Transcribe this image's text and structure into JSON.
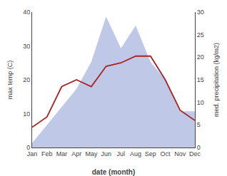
{
  "chart_data": {
    "type": "line",
    "xlabel": "date (month)",
    "ylabel": "max temp (C)",
    "y2label": "med. precipitation (kg/m2)",
    "categories": [
      "Jan",
      "Feb",
      "Mar",
      "Apr",
      "May",
      "Jun",
      "Jul",
      "Aug",
      "Sep",
      "Oct",
      "Nov",
      "Dec"
    ],
    "series": [
      {
        "type": "area",
        "axis": "y2",
        "color": "#c0c8e8",
        "values": [
          1,
          5,
          9,
          13,
          19,
          29,
          22,
          27,
          19,
          15,
          8,
          8
        ]
      },
      {
        "type": "line",
        "color": "#aa2222",
        "values": [
          6,
          9,
          18,
          20,
          18,
          24,
          25,
          27,
          27,
          20,
          11,
          8
        ]
      }
    ],
    "ylim": [
      0,
      40
    ],
    "yticks": [
      0,
      10,
      20,
      30,
      40
    ],
    "y2lim": [
      0,
      30
    ],
    "y2ticks": [
      0,
      5,
      10,
      15,
      20,
      25,
      30
    ],
    "grid": false
  }
}
